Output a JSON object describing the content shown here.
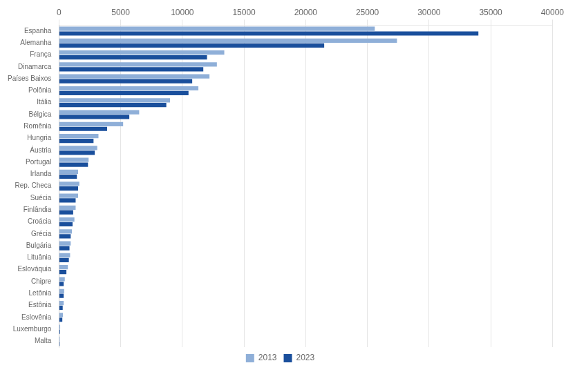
{
  "chart_data": {
    "type": "bar",
    "orientation": "horizontal",
    "categories": [
      "Espanha",
      "Alemanha",
      "França",
      "Dinamarca",
      "Países Baixos",
      "Polônia",
      "Itália",
      "Bélgica",
      "Romênia",
      "Hungria",
      "Áustria",
      "Portugal",
      "Irlanda",
      "Rep. Checa",
      "Suécia",
      "Finlândia",
      "Croácia",
      "Grécia",
      "Bulgária",
      "Lituânia",
      "Eslováquia",
      "Chipre",
      "Letônia",
      "Estônia",
      "Eslovênia",
      "Luxemburgo",
      "Malta"
    ],
    "series": [
      {
        "name": "2013",
        "color": "#8fafd8",
        "values": [
          25600,
          27400,
          13400,
          12800,
          12200,
          11300,
          9000,
          6500,
          5200,
          3200,
          3100,
          2400,
          1550,
          1650,
          1550,
          1350,
          1250,
          1050,
          950,
          900,
          720,
          470,
          420,
          380,
          320,
          95,
          65
        ]
      },
      {
        "name": "2023",
        "color": "#1a4f9c",
        "values": [
          34000,
          21500,
          12000,
          11700,
          10800,
          10500,
          8700,
          5700,
          3900,
          2800,
          2900,
          2350,
          1450,
          1550,
          1350,
          1150,
          1100,
          950,
          850,
          800,
          600,
          380,
          380,
          300,
          270,
          80,
          60
        ]
      }
    ],
    "xlim": [
      0,
      40000
    ],
    "xticks": [
      0,
      5000,
      10000,
      15000,
      20000,
      25000,
      30000,
      35000,
      40000
    ],
    "grid": true,
    "legend": "bottom"
  }
}
